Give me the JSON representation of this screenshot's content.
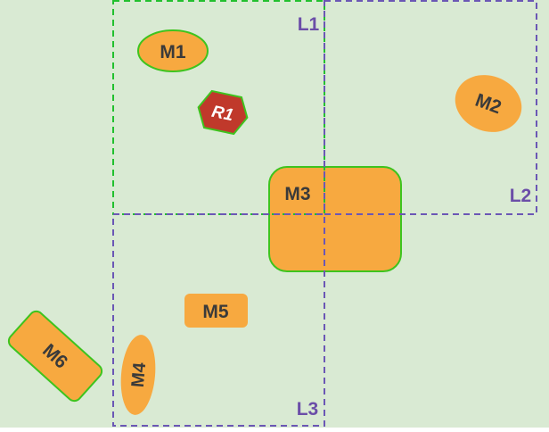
{
  "colors": {
    "background": "#d9ead3",
    "shape_fill": "#f7a940",
    "shape_outline": "#3ec41e",
    "region_green_dash": "#22c02e",
    "region_purple_dash": "#6b57b5",
    "region_label": "#6b4ea8",
    "shape_label": "#3a3a3a",
    "r1_fill": "#c0392b",
    "r1_label": "#ffffff"
  },
  "regions": {
    "l1": "L1",
    "l2": "L2",
    "l3": "L3"
  },
  "shapes": {
    "m1": "M1",
    "m2": "M2",
    "m3": "M3",
    "m4": "M4",
    "m5": "M5",
    "m6": "M6",
    "r1": "R1"
  }
}
